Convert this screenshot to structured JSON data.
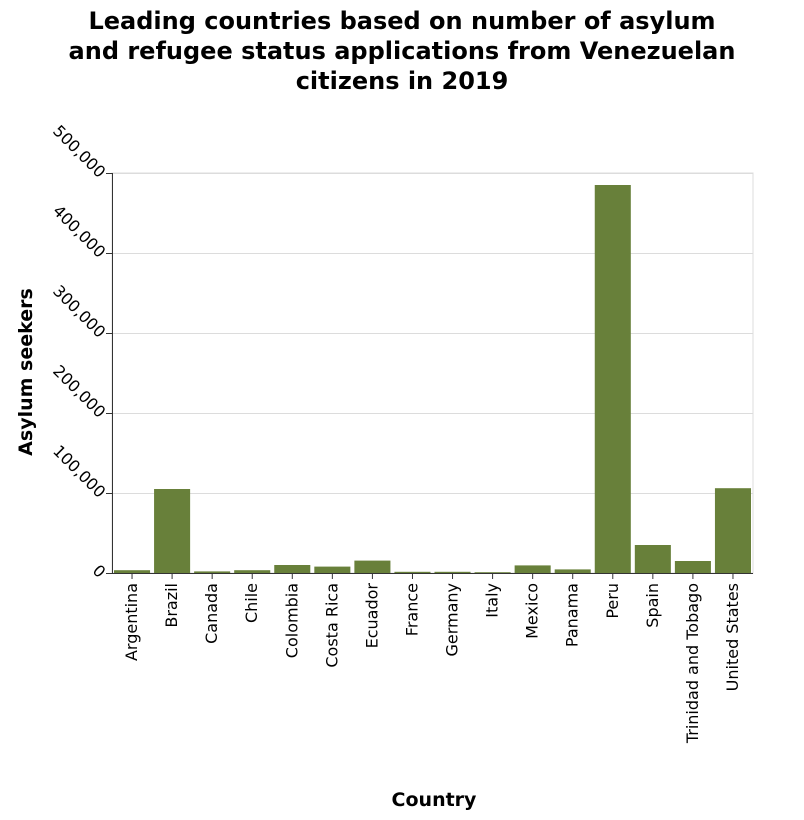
{
  "chart_data": {
    "type": "bar",
    "title_lines": [
      "Leading countries based on number of asylum",
      "and refugee status applications from Venezuelan",
      "citizens in 2019"
    ],
    "xlabel": "Country",
    "ylabel": "Asylum seekers",
    "ylim": [
      0,
      500000
    ],
    "yticks": [
      0,
      100000,
      200000,
      300000,
      400000,
      500000
    ],
    "ytick_labels": [
      "0",
      "100,000",
      "200,000",
      "300,000",
      "400,000",
      "500,000"
    ],
    "grid": "horizontal",
    "bar_color": "#68803a",
    "categories": [
      "Argentina",
      "Brazil",
      "Canada",
      "Chile",
      "Colombia",
      "Costa Rica",
      "Ecuador",
      "France",
      "Germany",
      "Italy",
      "Mexico",
      "Panama",
      "Peru",
      "Spain",
      "Trinidad and Tobago",
      "United States"
    ],
    "values": [
      3500,
      105000,
      2000,
      3500,
      10000,
      8000,
      15500,
      1500,
      1500,
      1000,
      9500,
      4500,
      485000,
      35000,
      15000,
      106000
    ]
  }
}
